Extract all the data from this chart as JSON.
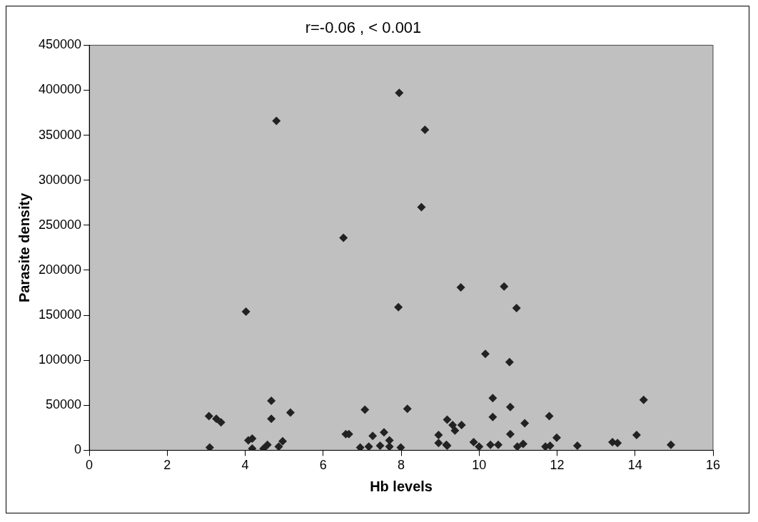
{
  "chart_data": {
    "type": "scatter",
    "title": "r=-0.06 , < 0.001",
    "xlabel": "Hb levels",
    "ylabel": "Parasite density",
    "x": [
      4.8,
      6.52,
      4.02,
      4.67,
      3.07,
      3.26,
      3.38,
      4.67,
      5.16,
      7.07,
      7.95,
      7.93,
      8.61,
      8.52,
      9.53,
      10.64,
      10.96,
      10.16,
      10.78,
      8.16,
      10.35,
      10.8,
      10.35,
      11.8,
      11.17,
      14.22,
      9.18,
      9.32,
      9.55,
      3.09,
      4.08,
      4.18,
      4.18,
      4.47,
      4.57,
      4.86,
      4.96,
      6.58,
      6.66,
      7.27,
      7.56,
      7.7,
      6.95,
      7.17,
      7.46,
      7.7,
      7.99,
      8.96,
      8.96,
      9.16,
      9.38,
      9.18,
      9.86,
      10.0,
      10.29,
      10.49,
      10.8,
      10.98,
      11.13,
      11.7,
      11.82,
      11.99,
      12.52,
      13.42,
      13.55,
      14.04,
      14.92
    ],
    "values": [
      366000,
      236000,
      154000,
      55000,
      38000,
      35000,
      31000,
      35000,
      42000,
      45000,
      397000,
      159000,
      356000,
      270000,
      181000,
      182000,
      158000,
      107000,
      98000,
      46000,
      58000,
      48000,
      37000,
      38000,
      30000,
      56000,
      34000,
      28000,
      28000,
      3000,
      11000,
      13000,
      2000,
      2000,
      6000,
      4000,
      10000,
      18000,
      18000,
      16000,
      20000,
      11000,
      3000,
      4000,
      5000,
      4000,
      3000,
      17000,
      8000,
      6000,
      22000,
      5000,
      9000,
      4000,
      6000,
      6000,
      18000,
      4000,
      7000,
      4000,
      5000,
      14000,
      5000,
      9000,
      8000,
      17000,
      6000
    ],
    "color": "#222222",
    "marker": "diamond",
    "xlim": [
      0,
      16
    ],
    "xticks": [
      0,
      2,
      4,
      6,
      8,
      10,
      12,
      14,
      16
    ],
    "ylim": [
      0,
      450000
    ],
    "yticks": [
      0,
      50000,
      100000,
      150000,
      200000,
      250000,
      300000,
      350000,
      400000,
      450000
    ]
  }
}
